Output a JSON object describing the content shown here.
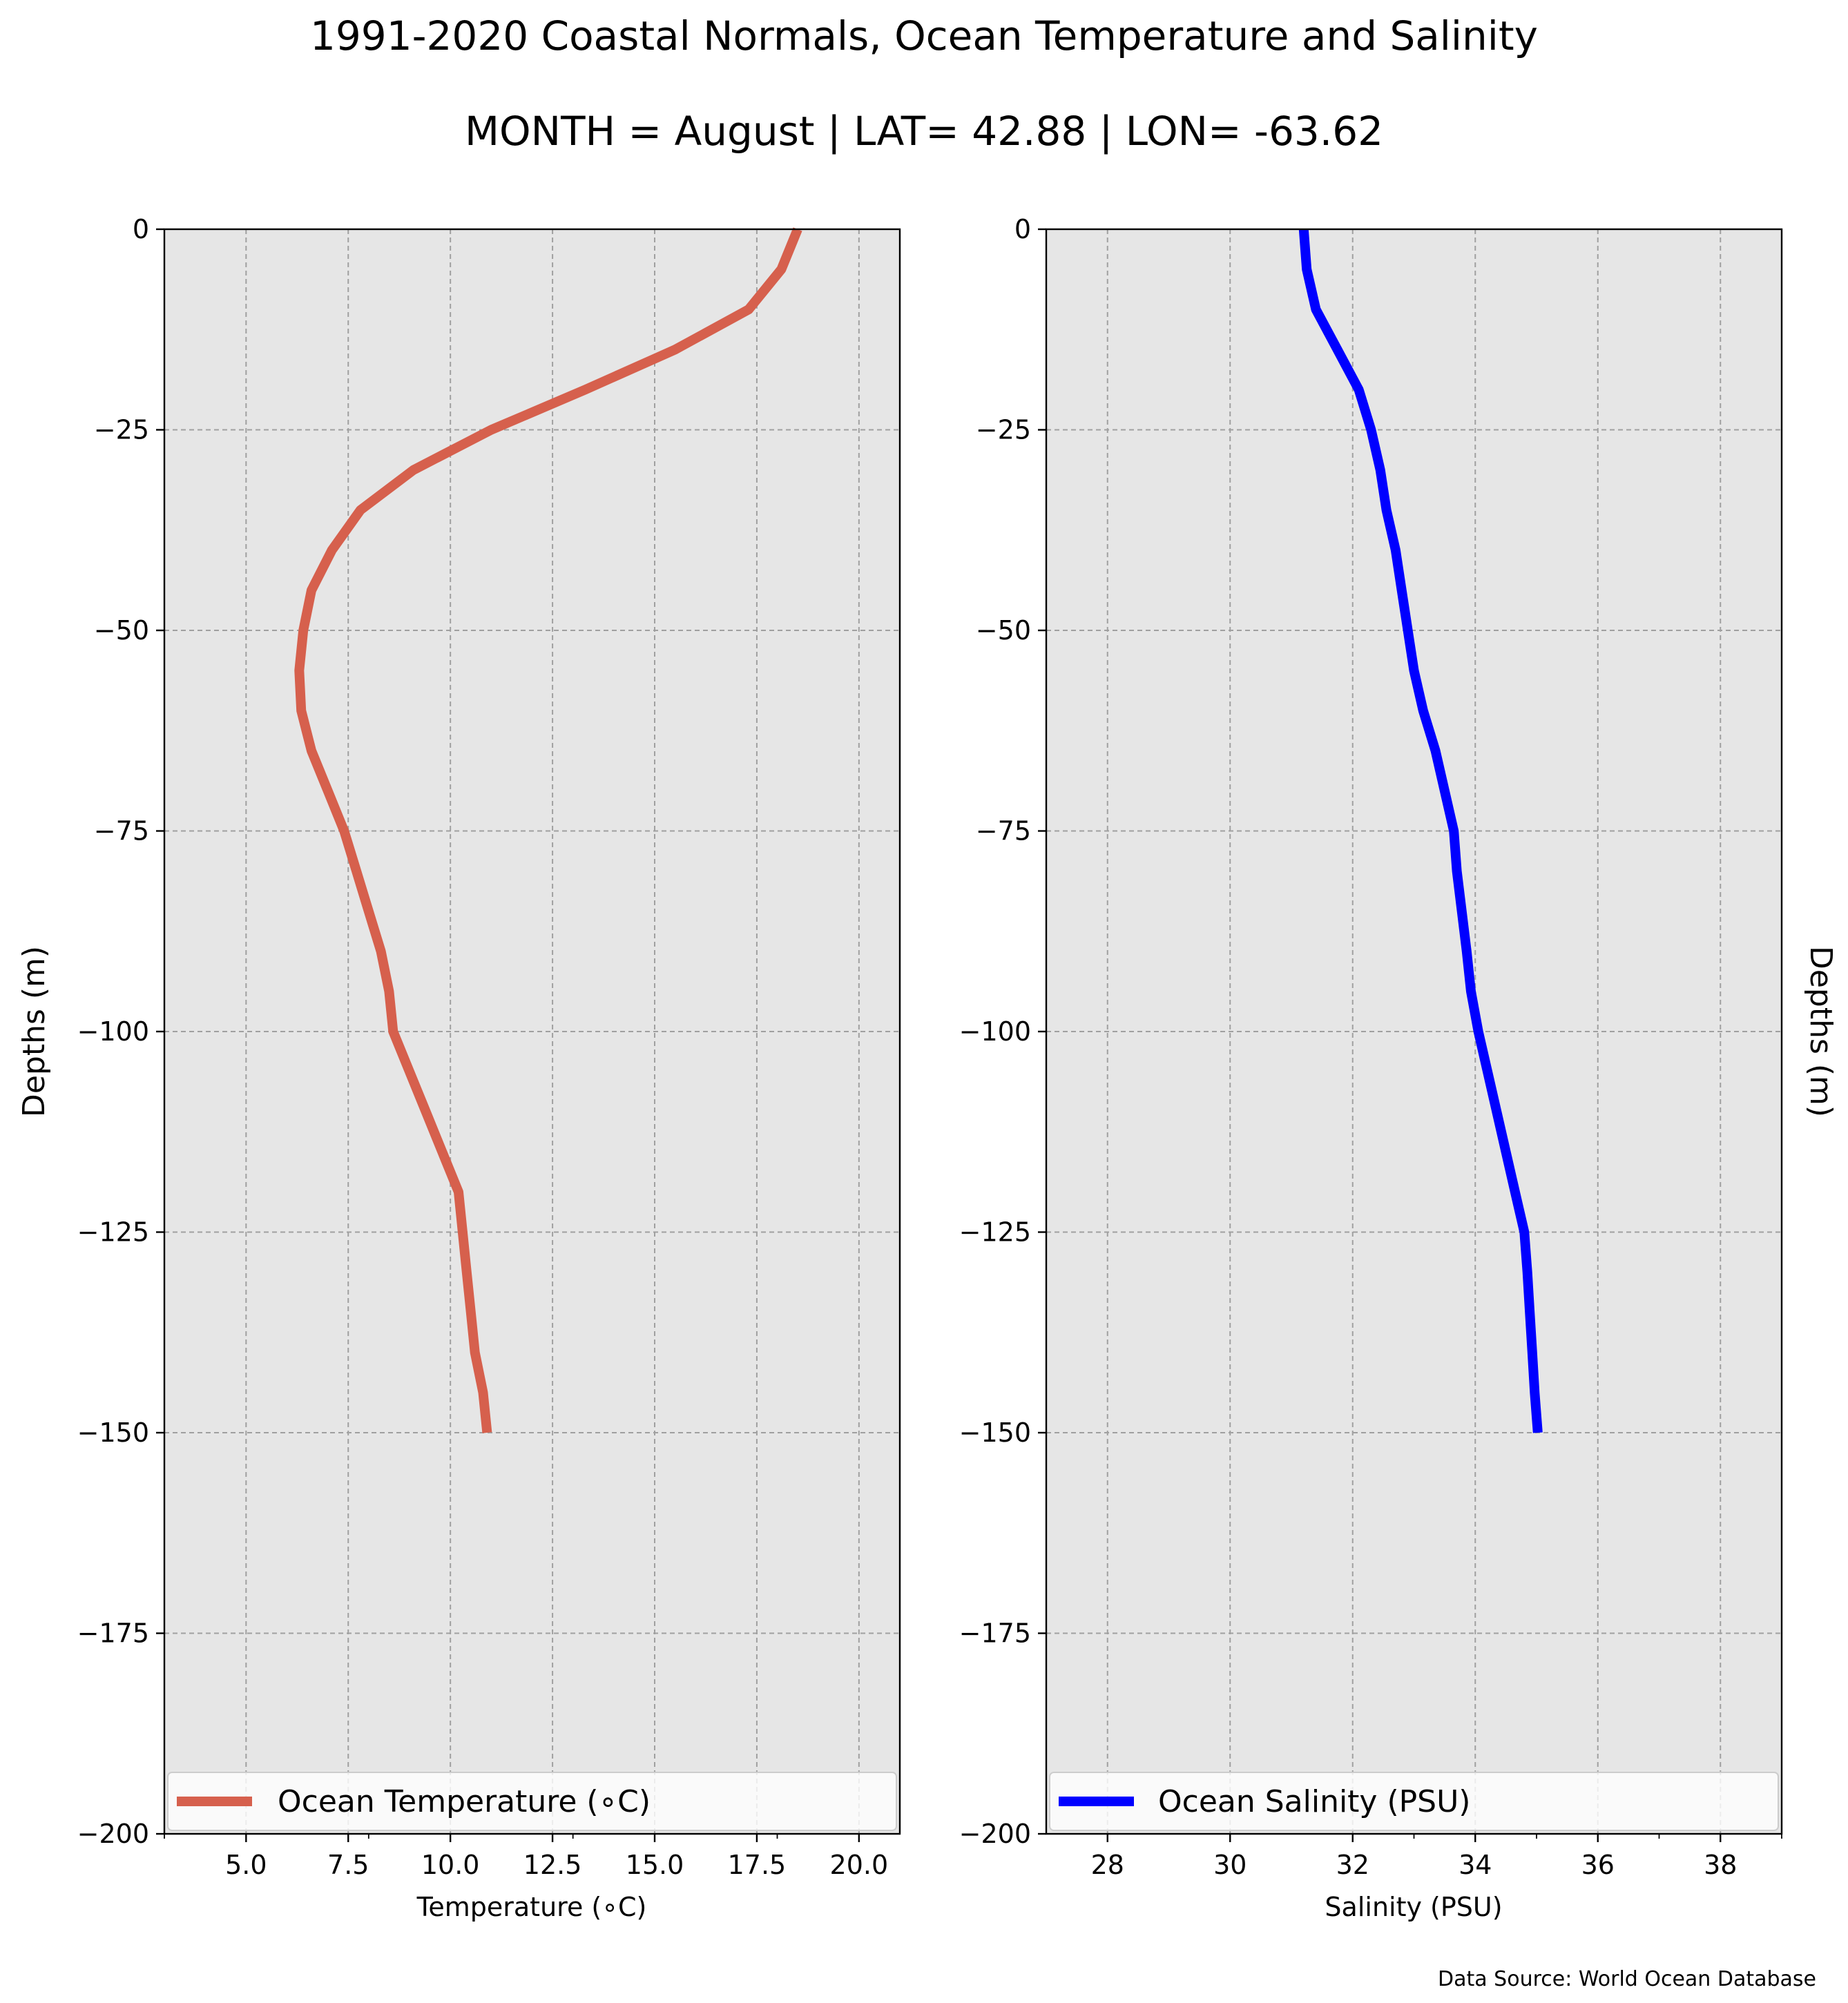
{
  "title": "1991-2020 Coastal Normals, Ocean Temperature and Salinity",
  "subtitle": "MONTH = August | LAT= 42.88 | LON= -63.62",
  "source_note": "Data Source: World Ocean Database",
  "chart_data": [
    {
      "type": "line",
      "orientation": "depth-profile",
      "xlabel": "Temperature ($^\\circ$C)",
      "xlabel_display": "Temperature (∘C)",
      "ylabel": "Depths (m)",
      "ylabel_side": "left",
      "xlim": [
        3.0,
        21.0
      ],
      "ylim": [
        -200,
        0
      ],
      "xticks": [
        5.0,
        7.5,
        10.0,
        12.5,
        15.0,
        17.5,
        20.0
      ],
      "xtick_labels": [
        "5.0",
        "7.5",
        "10.0",
        "12.5",
        "15.0",
        "17.5",
        "20.0"
      ],
      "xminor_ticks": [
        3.0,
        8.0,
        13.0,
        18.0
      ],
      "yticks": [
        0,
        -25,
        -50,
        -75,
        -100,
        -125,
        -150,
        -175,
        -200
      ],
      "ytick_labels": [
        "0",
        "−25",
        "−50",
        "−75",
        "−100",
        "−125",
        "−150",
        "−175",
        "−200"
      ],
      "grid": true,
      "legend_position": "bottom",
      "series": [
        {
          "name": "Ocean Temperature ($^\\circ$C)",
          "name_display": "Ocean Temperature (∘C)",
          "color": "#D6604D",
          "x": [
            18.5,
            18.1,
            17.3,
            15.5,
            13.3,
            11.0,
            9.1,
            7.8,
            7.1,
            6.6,
            6.4,
            6.3,
            6.35,
            6.6,
            7.0,
            7.4,
            7.7,
            8.0,
            8.3,
            8.5,
            8.6,
            9.0,
            9.4,
            9.8,
            10.2,
            10.3,
            10.4,
            10.5,
            10.6,
            10.8,
            10.9
          ],
          "y": [
            0,
            -5,
            -10,
            -15,
            -20,
            -25,
            -30,
            -35,
            -40,
            -45,
            -50,
            -55,
            -60,
            -65,
            -70,
            -75,
            -80,
            -85,
            -90,
            -95,
            -100,
            -105,
            -110,
            -115,
            -120,
            -125,
            -130,
            -135,
            -140,
            -145,
            -150
          ]
        }
      ]
    },
    {
      "type": "line",
      "orientation": "depth-profile",
      "xlabel": "Salinity (PSU)",
      "ylabel": "Depths (m)",
      "ylabel_side": "right",
      "xlim": [
        27.0,
        39.0
      ],
      "ylim": [
        -200,
        0
      ],
      "xticks": [
        28,
        30,
        32,
        34,
        36,
        38
      ],
      "xtick_labels": [
        "28",
        "30",
        "32",
        "34",
        "36",
        "38"
      ],
      "xminor_ticks": [
        33.0,
        35.0,
        37.0,
        39.0
      ],
      "yticks": [
        0,
        -25,
        -50,
        -75,
        -100,
        -125,
        -150,
        -175,
        -200
      ],
      "ytick_labels": [
        "0",
        "−25",
        "−50",
        "−75",
        "−100",
        "−125",
        "−150",
        "−175",
        "−200"
      ],
      "grid": true,
      "legend_position": "bottom",
      "series": [
        {
          "name": "Ocean Salinity (PSU)",
          "color": "#0000FF",
          "x": [
            31.2,
            31.25,
            31.4,
            31.75,
            32.1,
            32.3,
            32.45,
            32.55,
            32.7,
            32.8,
            32.9,
            33.0,
            33.15,
            33.35,
            33.5,
            33.65,
            33.7,
            33.78,
            33.86,
            33.93,
            34.05,
            34.2,
            34.35,
            34.5,
            34.65,
            34.8,
            34.85,
            34.89,
            34.93,
            34.97,
            35.02
          ],
          "y": [
            0,
            -5,
            -10,
            -15,
            -20,
            -25,
            -30,
            -35,
            -40,
            -45,
            -50,
            -55,
            -60,
            -65,
            -70,
            -75,
            -80,
            -85,
            -90,
            -95,
            -100,
            -105,
            -110,
            -115,
            -120,
            -125,
            -130,
            -135,
            -140,
            -145,
            -150
          ]
        }
      ]
    }
  ]
}
